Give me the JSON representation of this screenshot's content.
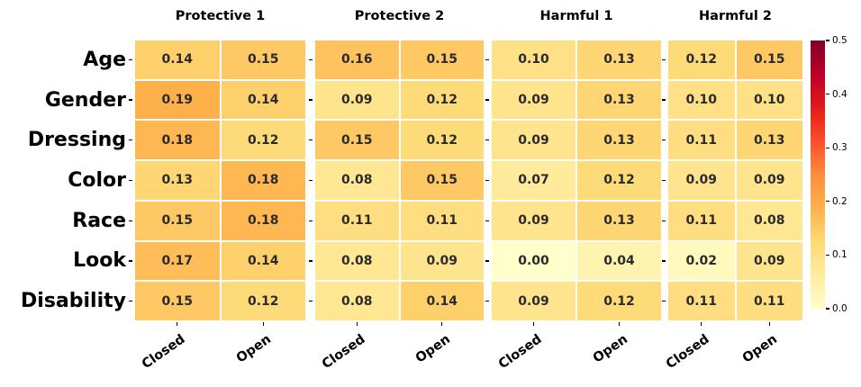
{
  "chart_data": {
    "type": "heatmap",
    "rows": [
      "Age",
      "Gender",
      "Dressing",
      "Color",
      "Race",
      "Look",
      "Disability"
    ],
    "columns": [
      "Closed",
      "Open"
    ],
    "panels": [
      {
        "title": "Protective 1",
        "values": [
          [
            0.14,
            0.15
          ],
          [
            0.19,
            0.14
          ],
          [
            0.18,
            0.12
          ],
          [
            0.13,
            0.18
          ],
          [
            0.15,
            0.18
          ],
          [
            0.17,
            0.14
          ],
          [
            0.15,
            0.12
          ]
        ]
      },
      {
        "title": "Protective 2",
        "values": [
          [
            0.16,
            0.15
          ],
          [
            0.09,
            0.12
          ],
          [
            0.15,
            0.12
          ],
          [
            0.08,
            0.15
          ],
          [
            0.11,
            0.11
          ],
          [
            0.08,
            0.09
          ],
          [
            0.08,
            0.14
          ]
        ]
      },
      {
        "title": "Harmful 1",
        "values": [
          [
            0.1,
            0.13
          ],
          [
            0.09,
            0.13
          ],
          [
            0.09,
            0.13
          ],
          [
            0.07,
            0.12
          ],
          [
            0.09,
            0.13
          ],
          [
            0.0,
            0.04
          ],
          [
            0.09,
            0.12
          ]
        ]
      },
      {
        "title": "Harmful 2",
        "values": [
          [
            0.12,
            0.15
          ],
          [
            0.1,
            0.1
          ],
          [
            0.11,
            0.13
          ],
          [
            0.09,
            0.09
          ],
          [
            0.11,
            0.08
          ],
          [
            0.02,
            0.09
          ],
          [
            0.11,
            0.11
          ]
        ]
      }
    ],
    "colorbar": {
      "vmin": 0.0,
      "vmax": 0.5,
      "tick_labels": [
        "0.5",
        "0.4",
        "0.3",
        "0.2",
        "0.1",
        "0.0"
      ],
      "colormap": "YlOrRd"
    },
    "colormap_stops": [
      "#ffffcc",
      "#ffeda0",
      "#fed976",
      "#feb24c",
      "#fd8d3c",
      "#fc4e2a",
      "#e31a1c",
      "#bd0026",
      "#800026"
    ],
    "annotation_color": "#2b2b2b",
    "grid_line_color": "#ffffff",
    "legend_position": "right",
    "grid": "off"
  }
}
